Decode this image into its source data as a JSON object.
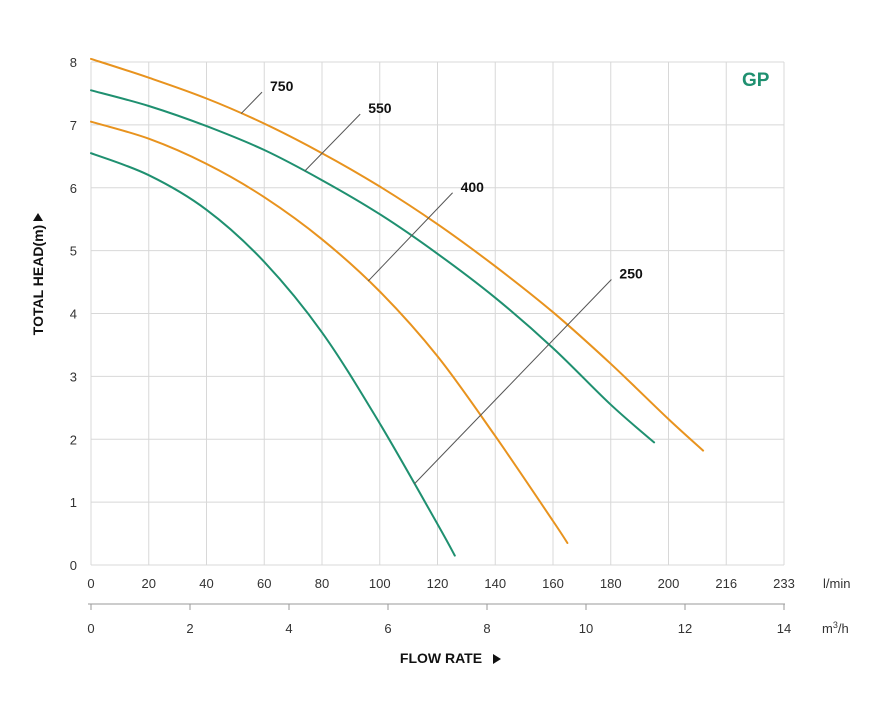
{
  "chart_data": {
    "type": "line",
    "brand_label": "GP",
    "ylabel": "TOTAL HEAD(m)",
    "xlabel": "FLOW RATE",
    "ylim": [
      0,
      8
    ],
    "xlim": [
      0,
      240
    ],
    "y_ticks": [
      0,
      1,
      2,
      3,
      4,
      5,
      6,
      7,
      8
    ],
    "x_ticks_lmin": [
      0,
      20,
      40,
      60,
      80,
      100,
      120,
      140,
      160,
      180,
      200,
      216,
      233
    ],
    "x_unit_lmin": "l/min",
    "x_ticks_m3h": [
      0,
      2,
      4,
      6,
      8,
      10,
      12,
      14
    ],
    "x_unit_m3h": "m³/h",
    "x_unit_m3h_base": "m",
    "x_unit_m3h_sup": "3",
    "x_unit_m3h_tail": "/h",
    "grid": true,
    "series": [
      {
        "name": "750",
        "color": "#e8931e",
        "points": [
          [
            0,
            8.05
          ],
          [
            20,
            7.75
          ],
          [
            40,
            7.42
          ],
          [
            60,
            7.02
          ],
          [
            80,
            6.55
          ],
          [
            100,
            6.02
          ],
          [
            120,
            5.42
          ],
          [
            140,
            4.75
          ],
          [
            160,
            4.02
          ],
          [
            180,
            3.2
          ],
          [
            200,
            2.32
          ],
          [
            212,
            1.82
          ]
        ]
      },
      {
        "name": "550",
        "color": "#1f9070",
        "points": [
          [
            0,
            7.55
          ],
          [
            20,
            7.3
          ],
          [
            40,
            6.98
          ],
          [
            60,
            6.6
          ],
          [
            80,
            6.12
          ],
          [
            100,
            5.58
          ],
          [
            120,
            4.95
          ],
          [
            140,
            4.25
          ],
          [
            160,
            3.45
          ],
          [
            180,
            2.55
          ],
          [
            195,
            1.95
          ]
        ]
      },
      {
        "name": "400",
        "color": "#e8931e",
        "points": [
          [
            0,
            7.05
          ],
          [
            20,
            6.78
          ],
          [
            40,
            6.38
          ],
          [
            60,
            5.85
          ],
          [
            80,
            5.18
          ],
          [
            100,
            4.35
          ],
          [
            120,
            3.32
          ],
          [
            140,
            2.05
          ],
          [
            160,
            0.7
          ],
          [
            165,
            0.35
          ]
        ]
      },
      {
        "name": "250",
        "color": "#1f9070",
        "points": [
          [
            0,
            6.55
          ],
          [
            20,
            6.2
          ],
          [
            40,
            5.65
          ],
          [
            60,
            4.82
          ],
          [
            80,
            3.7
          ],
          [
            100,
            2.25
          ],
          [
            120,
            0.65
          ],
          [
            126,
            0.15
          ]
        ]
      }
    ],
    "annotations": [
      {
        "text": "750",
        "series": "750",
        "at_x": 52,
        "label_x": 62,
        "label_y": 7.6
      },
      {
        "text": "550",
        "series": "550",
        "at_x": 74,
        "label_x": 96,
        "label_y": 7.25
      },
      {
        "text": "400",
        "series": "400",
        "at_x": 96,
        "label_x": 128,
        "label_y": 6.0
      },
      {
        "text": "250",
        "series": "250",
        "at_x": 112,
        "label_x": 183,
        "label_y": 4.62
      }
    ]
  }
}
